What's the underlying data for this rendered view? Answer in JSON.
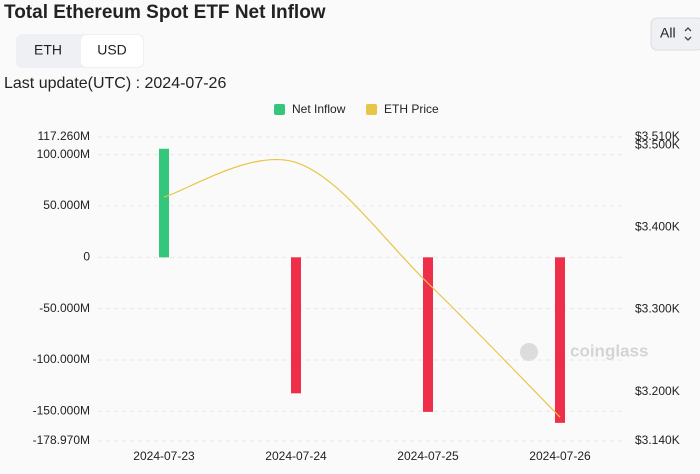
{
  "header": {
    "title": "Total Ethereum Spot ETF Net Inflow",
    "toggle": [
      "ETH",
      "USD"
    ],
    "range": "All",
    "last_update": "Last update(UTC) : 2024-07-26",
    "watermark": "coinglass"
  },
  "chart_data": {
    "type": "bar",
    "categories": [
      "2024-07-23",
      "2024-07-24",
      "2024-07-25",
      "2024-07-26"
    ],
    "series": [
      {
        "name": "Net Inflow",
        "type": "bar",
        "color": "#34c77b",
        "negative_color": "#ef2f4a",
        "values": [
          105.8,
          -132.5,
          -150.6,
          -161.3
        ]
      },
      {
        "name": "ETH Price",
        "type": "line",
        "axis": "y2",
        "color": "#e8c547",
        "values": [
          3.437,
          3.479,
          3.332,
          3.169
        ]
      }
    ],
    "ylim": [
      -178.97,
      117.26
    ],
    "yticks": [
      {
        "value": 117.26,
        "label": "117.260M"
      },
      {
        "value": 100,
        "label": "100.000M"
      },
      {
        "value": 50,
        "label": "50.000M"
      },
      0,
      {
        "value": -50,
        "label": "-50.000M"
      },
      {
        "value": -100,
        "label": "-100.000M"
      },
      {
        "value": -150,
        "label": "-150.000M"
      },
      {
        "value": -178.97,
        "label": "-178.970M"
      }
    ],
    "y2lim": [
      3.14,
      3.51
    ],
    "y2ticks": [
      {
        "value": 3.51,
        "label": "$3.510K"
      },
      {
        "value": 3.5,
        "label": "$3.500K"
      },
      {
        "value": 3.4,
        "label": "$3.400K"
      },
      {
        "value": 3.3,
        "label": "$3.300K"
      },
      {
        "value": 3.2,
        "label": "$3.200K"
      },
      {
        "value": 3.14,
        "label": "$3.140K"
      }
    ],
    "grid": true
  }
}
